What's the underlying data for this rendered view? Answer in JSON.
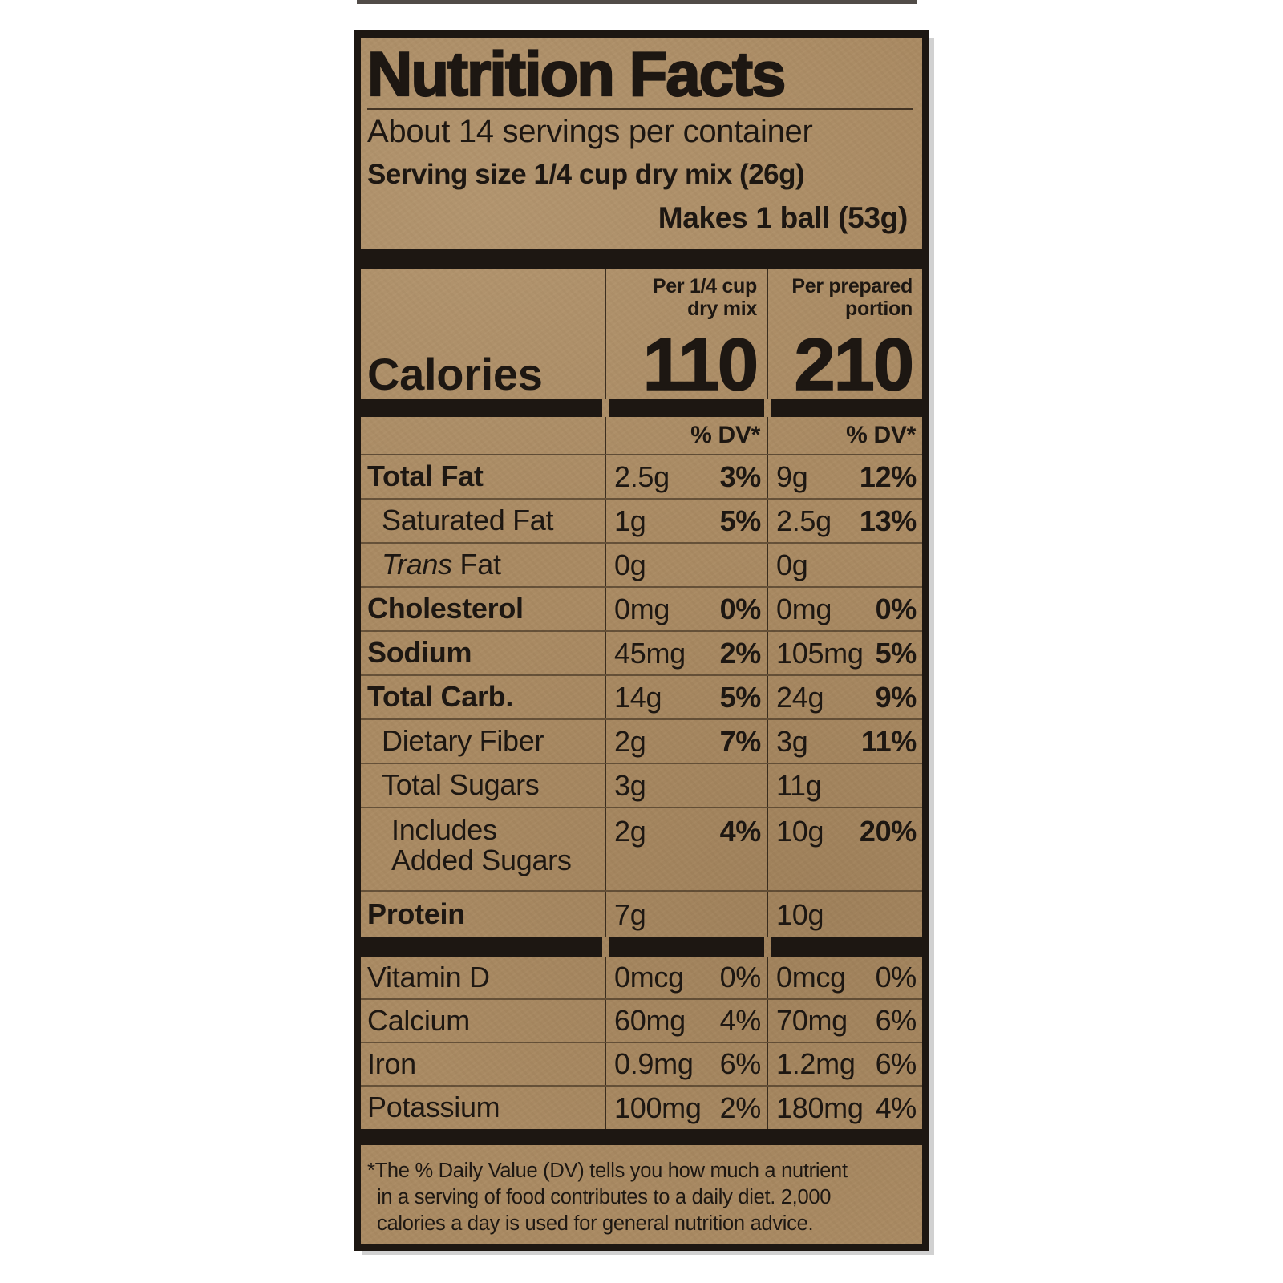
{
  "label": {
    "title": "Nutrition Facts",
    "servings_per_container": "About 14 servings per container",
    "serving_size": "Serving size 1/4 cup dry mix (26g)",
    "makes": "Makes 1 ball (53g)",
    "calories": {
      "label": "Calories",
      "col1_header_line1": "Per 1/4 cup",
      "col1_header_line2": "dry mix",
      "col2_header_line1": "Per prepared",
      "col2_header_line2": "portion",
      "col1_value": "110",
      "col2_value": "210"
    },
    "dv_header": "% DV*",
    "rows": [
      {
        "name": "Total Fat",
        "amount1": "2.5g",
        "dv1": "3%",
        "amount2": "9g",
        "dv2": "12%"
      },
      {
        "name": "Saturated Fat",
        "amount1": "1g",
        "dv1": "5%",
        "amount2": "2.5g",
        "dv2": "13%"
      },
      {
        "name_italic": "Trans",
        "name_rest": " Fat",
        "amount1": "0g",
        "dv1": "",
        "amount2": "0g",
        "dv2": ""
      },
      {
        "name": "Cholesterol",
        "amount1": "0mg",
        "dv1": "0%",
        "amount2": "0mg",
        "dv2": "0%"
      },
      {
        "name": "Sodium",
        "amount1": "45mg",
        "dv1": "2%",
        "amount2": "105mg",
        "dv2": "5%"
      },
      {
        "name": "Total Carb.",
        "amount1": "14g",
        "dv1": "5%",
        "amount2": "24g",
        "dv2": "9%"
      },
      {
        "name": "Dietary Fiber",
        "amount1": "2g",
        "dv1": "7%",
        "amount2": "3g",
        "dv2": "11%"
      },
      {
        "name": "Total Sugars",
        "amount1": "3g",
        "dv1": "",
        "amount2": "11g",
        "dv2": ""
      },
      {
        "name_line1": "Includes",
        "name_line2": "Added Sugars",
        "amount1": "2g",
        "dv1": "4%",
        "amount2": "10g",
        "dv2": "20%"
      },
      {
        "name": "Protein",
        "amount1": "7g",
        "dv1": "",
        "amount2": "10g",
        "dv2": ""
      }
    ],
    "micronutrients": [
      {
        "name": "Vitamin D",
        "amount1": "0mcg",
        "dv1": "0%",
        "amount2": "0mcg",
        "dv2": "0%"
      },
      {
        "name": "Calcium",
        "amount1": "60mg",
        "dv1": "4%",
        "amount2": "70mg",
        "dv2": "6%"
      },
      {
        "name": "Iron",
        "amount1": "0.9mg",
        "dv1": "6%",
        "amount2": "1.2mg",
        "dv2": "6%"
      },
      {
        "name": "Potassium",
        "amount1": "100mg",
        "dv1": "2%",
        "amount2": "180mg",
        "dv2": "4%"
      }
    ],
    "footnote_lines": [
      "*The % Daily Value (DV) tells you how much a nutrient",
      "in a serving of food contributes to a daily diet. 2,000",
      "calories a day is used for general nutrition advice."
    ],
    "colors": {
      "paper": "#a98a63",
      "ink": "#1d1712"
    }
  }
}
